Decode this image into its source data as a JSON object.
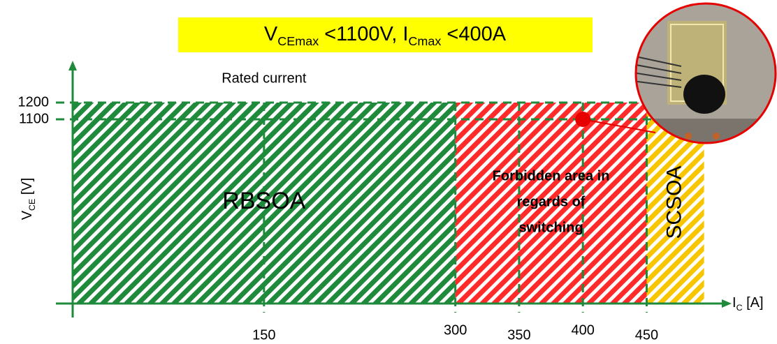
{
  "chart_data": {
    "type": "region",
    "title_parts": [
      "V",
      "CEmax",
      " <1100V, I",
      "Cmax",
      " <400A"
    ],
    "x_label_parts": [
      "I",
      "C",
      " [A]"
    ],
    "y_label_parts": [
      "V",
      "CE",
      " [V]"
    ],
    "annotation": "Rated current",
    "xlim": [
      0,
      510
    ],
    "ylim": [
      0,
      1400
    ],
    "xticks": [
      150,
      300,
      350,
      400,
      450
    ],
    "yticks": [
      1100,
      1200
    ],
    "grid": true,
    "regions": [
      {
        "name": [
          "RBSOA"
        ],
        "color": "#1f8a3b",
        "x": [
          0,
          300
        ],
        "y": [
          0,
          1200
        ]
      },
      {
        "name": [
          "Forbidden area in",
          "regards of",
          "switching"
        ],
        "color": "#ff2b2b",
        "x": [
          300,
          450
        ],
        "y": [
          0,
          1200
        ]
      },
      {
        "name": [
          "SCSOA"
        ],
        "color": "#f7c600",
        "x": [
          450,
          495
        ],
        "y": [
          0,
          1200
        ]
      }
    ],
    "marker": {
      "x": 400,
      "y": 1100,
      "color": "#e60000"
    }
  }
}
